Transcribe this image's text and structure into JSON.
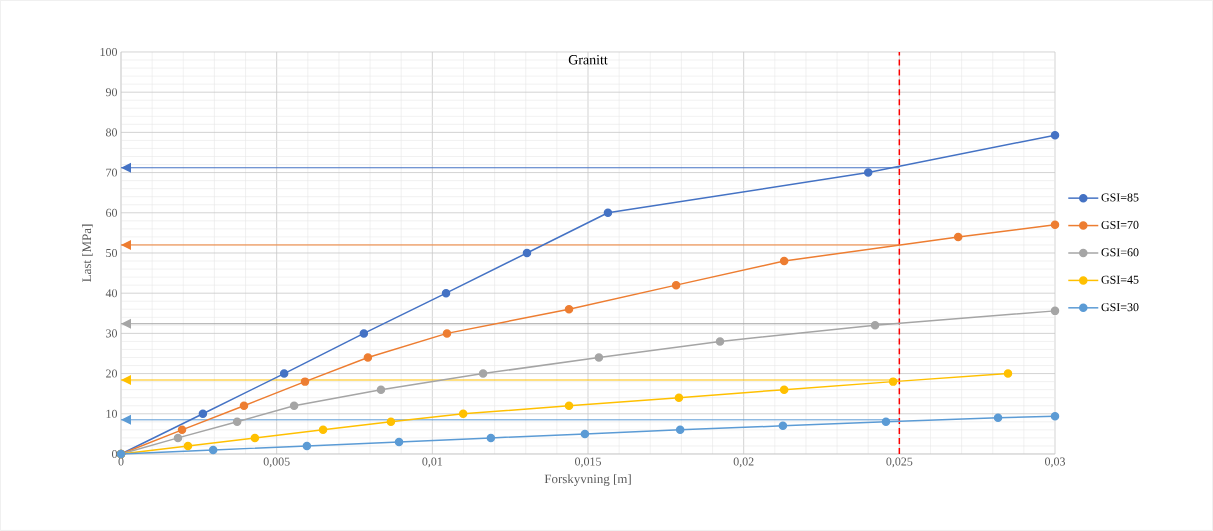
{
  "chart_data": {
    "type": "line",
    "title": "Granitt",
    "xlabel": "Forskyvning [m]",
    "ylabel": "Last [MPa]",
    "xlim": [
      0,
      0.03
    ],
    "ylim": [
      0,
      100
    ],
    "xticks": [
      0,
      {
        "value": 0.005,
        "label": "0,005"
      },
      {
        "value": 0.01,
        "label": "0,01"
      },
      {
        "value": 0.015,
        "label": "0,015"
      },
      {
        "value": 0.02,
        "label": "0,02"
      },
      {
        "value": 0.025,
        "label": "0,025"
      },
      {
        "value": 0.03,
        "label": "0,03"
      }
    ],
    "yticks": [
      0,
      10,
      20,
      30,
      40,
      50,
      60,
      70,
      80,
      90,
      100
    ],
    "grid": true,
    "legend": "right",
    "marker": "circle",
    "line_style": "solid",
    "series": [
      {
        "name": "GSI=85",
        "color": "#4472c4",
        "x": [
          0,
          0.00263,
          0.00524,
          0.0078,
          0.01044,
          0.01304,
          0.01564,
          0.024,
          0.03
        ],
        "values": [
          0,
          10,
          20,
          30,
          40,
          50,
          60,
          70,
          79.3
        ]
      },
      {
        "name": "GSI=70",
        "color": "#ed7d31",
        "x": [
          0,
          0.00196,
          0.00395,
          0.00591,
          0.00793,
          0.01047,
          0.01439,
          0.01783,
          0.0213,
          0.02689,
          0.03
        ],
        "values": [
          0,
          6,
          12,
          18,
          24,
          30,
          36,
          42,
          48,
          54,
          57
        ]
      },
      {
        "name": "GSI=60",
        "color": "#a5a5a5",
        "x": [
          0,
          0.00183,
          0.00373,
          0.00556,
          0.00835,
          0.01163,
          0.01535,
          0.01924,
          0.02422,
          0.03
        ],
        "values": [
          0,
          4,
          8,
          12,
          16,
          20,
          24,
          28,
          32,
          35.6
        ]
      },
      {
        "name": "GSI=45",
        "color": "#ffc000",
        "x": [
          0,
          0.00215,
          0.0043,
          0.00649,
          0.00867,
          0.01099,
          0.01439,
          0.01792,
          0.0213,
          0.0248,
          0.02849
        ],
        "values": [
          0,
          2,
          4,
          6,
          8,
          10,
          12,
          14,
          16,
          18,
          20
        ]
      },
      {
        "name": "GSI=30",
        "color": "#5b9bd5",
        "x": [
          0,
          0.00296,
          0.00597,
          0.00893,
          0.01188,
          0.0149,
          0.01796,
          0.02126,
          0.02457,
          0.02817,
          0.03
        ],
        "values": [
          0,
          1,
          2,
          3,
          4,
          5,
          6,
          7,
          8,
          9,
          9.4
        ]
      }
    ],
    "ref_lines": [
      {
        "axis": "y",
        "value": 71.2,
        "color": "#4472c4"
      },
      {
        "axis": "y",
        "value": 52,
        "color": "#ed7d31"
      },
      {
        "axis": "y",
        "value": 32.4,
        "color": "#a5a5a5"
      },
      {
        "axis": "y",
        "value": 18.4,
        "color": "#ffc000"
      },
      {
        "axis": "y",
        "value": 8.5,
        "color": "#5b9bd5"
      },
      {
        "axis": "x",
        "value": 0.025,
        "color": "#ff0000",
        "line_style": "dashed"
      }
    ]
  }
}
